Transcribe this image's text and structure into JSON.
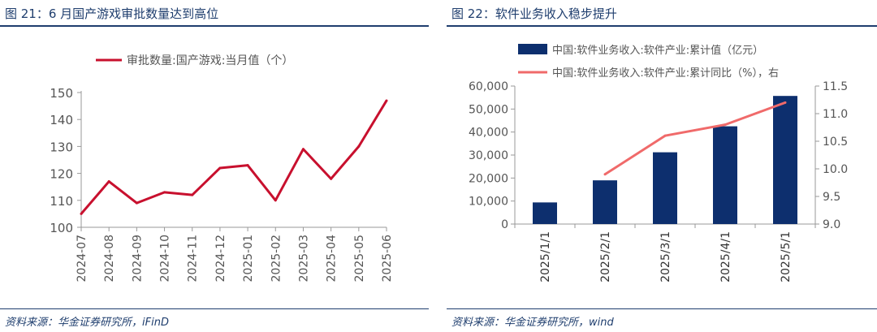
{
  "left": {
    "title": "图 21：6 月国产游戏审批数量达到高位",
    "source": "资料来源：华金证券研究所，iFinD",
    "line_color": "#c8102e"
  },
  "right": {
    "title": "图 22：软件业务收入稳步提升",
    "source": "资料来源：华金证券研究所，wind",
    "bar_color": "#0d2f6e",
    "line_color": "#f06a6a"
  },
  "chart_data": [
    {
      "type": "line",
      "title": "6 月国产游戏审批数量达到高位",
      "categories": [
        "2024-07",
        "2024-08",
        "2024-09",
        "2024-10",
        "2024-11",
        "2024-12",
        "2025-01",
        "2025-02",
        "2025-03",
        "2025-04",
        "2025-05",
        "2025-06"
      ],
      "series": [
        {
          "name": "审批数量:国产游戏:当月值（个）",
          "values": [
            105,
            117,
            109,
            113,
            112,
            122,
            123,
            110,
            129,
            118,
            130,
            147
          ]
        }
      ],
      "ylim": [
        100,
        150
      ],
      "yticks": [
        "100",
        "110",
        "120",
        "130",
        "140",
        "150"
      ],
      "grid": false,
      "legend": "top-center"
    },
    {
      "type": "bar",
      "title": "软件业务收入稳步提升",
      "categories": [
        "2025/1/1",
        "2025/2/1",
        "2025/3/1",
        "2025/4/1",
        "2025/5/1"
      ],
      "series": [
        {
          "name": "中国:软件业务收入:软件产业:累计值（亿元）",
          "type": "bar",
          "axis": "left",
          "values": [
            9400,
            19000,
            31200,
            42500,
            55700
          ]
        },
        {
          "name": "中国:软件业务收入:软件产业:累计同比（%），右",
          "type": "line",
          "axis": "right",
          "values": [
            null,
            9.9,
            10.6,
            10.8,
            11.2
          ]
        }
      ],
      "ylim": [
        0,
        60000
      ],
      "yticks": [
        "0",
        "10,000",
        "20,000",
        "30,000",
        "40,000",
        "50,000",
        "60,000"
      ],
      "y2lim": [
        9.0,
        11.5
      ],
      "y2ticks": [
        "9.0",
        "9.5",
        "10.0",
        "10.5",
        "11.0",
        "11.5"
      ],
      "grid": false,
      "legend": "top"
    }
  ]
}
